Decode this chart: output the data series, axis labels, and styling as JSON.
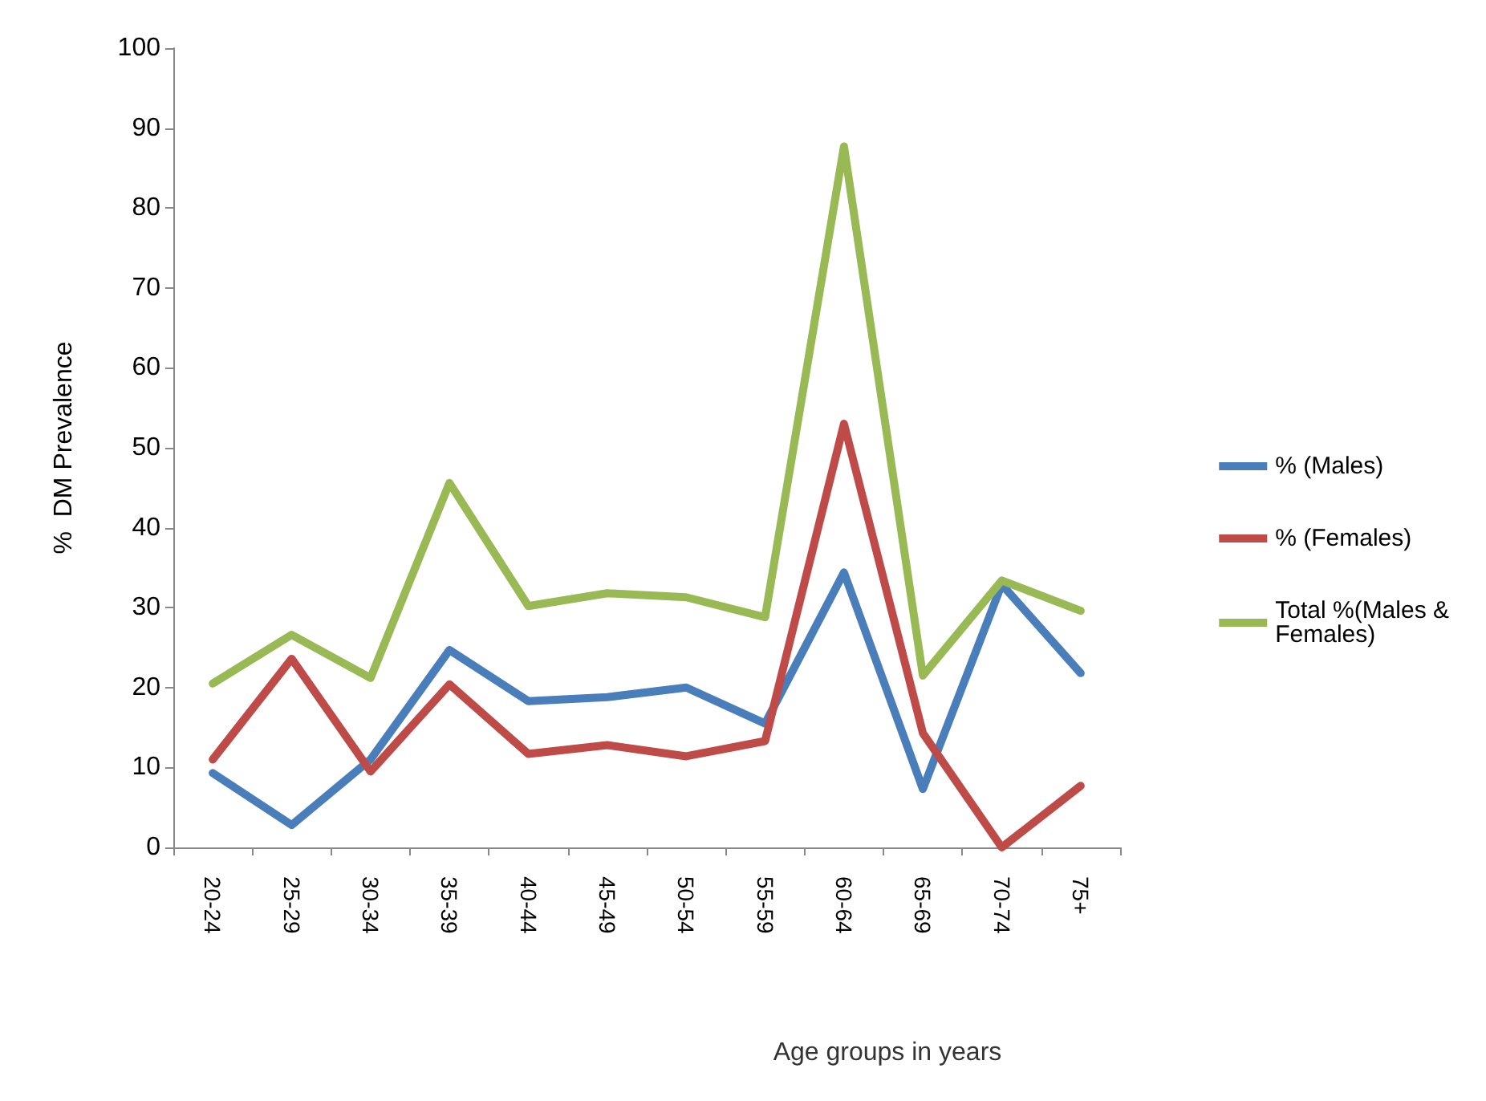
{
  "chart_data": {
    "type": "line",
    "xlabel": "Age groups in years",
    "ylabel": "%  DM Prevalence",
    "categories": [
      "20-24",
      "25-29",
      "30-34",
      "35-39",
      "40-44",
      "45-49",
      "50-54",
      "55-59",
      "60-64",
      "65-69",
      "70-74",
      "75+"
    ],
    "series": [
      {
        "name": "% (Males)",
        "color": "#4a7ebb",
        "values": [
          9.3,
          2.8,
          11,
          24.7,
          18.3,
          18.8,
          20,
          15.5,
          34.4,
          7.3,
          32.9,
          21.8
        ]
      },
      {
        "name": "% (Females)",
        "color": "#be4b48",
        "values": [
          11,
          23.6,
          9.5,
          20.4,
          11.7,
          12.8,
          11.4,
          13.3,
          53,
          14.3,
          0,
          7.7
        ]
      },
      {
        "name": "Total %(Males &Females)",
        "color": "#98b954",
        "values": [
          20.5,
          26.6,
          21.2,
          45.6,
          30.2,
          31.8,
          31.3,
          28.8,
          87.7,
          21.5,
          33.4,
          29.6
        ]
      }
    ],
    "ylim": [
      0,
      100
    ],
    "yticks": [
      0,
      10,
      20,
      30,
      40,
      50,
      60,
      70,
      80,
      90,
      100
    ],
    "grid": false,
    "legend": "right",
    "marker": "none",
    "line_style": "solid"
  }
}
